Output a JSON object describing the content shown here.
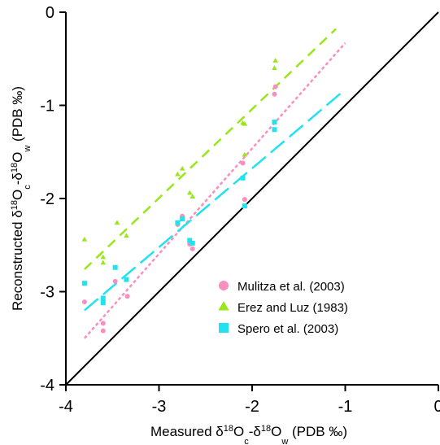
{
  "chart_data": {
    "type": "scatter",
    "xlabel_parts": [
      "Measured δ",
      "18",
      "O",
      "c",
      "-δ",
      "18",
      "O",
      "w",
      " (PDB ‰)"
    ],
    "ylabel_parts": [
      "Reconstructed δ",
      "18",
      "O",
      "c",
      "-δ",
      "18",
      "O",
      "w",
      " (PDB ‰)"
    ],
    "xlim": [
      -4,
      0
    ],
    "ylim": [
      -4,
      0
    ],
    "xticks": [
      -4,
      -3,
      -2,
      -1,
      0
    ],
    "yticks": [
      -4,
      -3,
      -2,
      -1,
      0
    ],
    "xtick_labels": [
      "-4",
      "-3",
      "-2",
      "-1",
      "0"
    ],
    "ytick_labels": [
      "-4",
      "-3",
      "-2",
      "-1",
      "0"
    ],
    "grid": false,
    "legend_position": "bottom-right",
    "reference_line": {
      "x": [
        -4,
        0
      ],
      "y": [
        -4,
        0
      ],
      "color": "#000000"
    },
    "series": [
      {
        "name": "Mulitza et al. (2003)",
        "marker": "circle",
        "color": "#f78fbf",
        "x": [
          -3.8,
          -3.6,
          -3.6,
          -3.47,
          -3.34,
          -2.8,
          -2.75,
          -2.67,
          -2.64,
          -2.1,
          -2.08,
          -1.76,
          -1.75
        ],
        "y": [
          -3.11,
          -3.34,
          -3.42,
          -2.89,
          -3.05,
          -2.28,
          -2.19,
          -2.49,
          -2.54,
          -1.62,
          -2.01,
          -0.88,
          -0.8
        ],
        "fit": {
          "x": [
            -3.8,
            -1.0
          ],
          "y": [
            -3.5,
            -0.33
          ],
          "dash": "4,3"
        }
      },
      {
        "name": "Erez and Luz (1983)",
        "marker": "triangle",
        "color": "#99e619",
        "x": [
          -3.8,
          -3.6,
          -3.6,
          -3.45,
          -3.35,
          -2.8,
          -2.75,
          -2.67,
          -2.64,
          -2.1,
          -2.08,
          -2.08,
          -1.76,
          -1.75
        ],
        "y": [
          -2.44,
          -2.63,
          -2.69,
          -2.26,
          -2.4,
          -1.74,
          -1.68,
          -1.94,
          -1.98,
          -1.19,
          -1.2,
          -1.53,
          -0.6,
          -0.52
        ],
        "fit": {
          "x": [
            -3.8,
            -1.1
          ],
          "y": [
            -2.76,
            -0.18
          ],
          "dash": "12,8"
        }
      },
      {
        "name": "Spero et al. (2003)",
        "marker": "square",
        "color": "#22e2f0",
        "x": [
          -3.8,
          -3.6,
          -3.6,
          -3.47,
          -3.35,
          -2.8,
          -2.75,
          -2.67,
          -2.64,
          -2.1,
          -2.08,
          -1.76,
          -1.76
        ],
        "y": [
          -2.91,
          -3.07,
          -3.12,
          -2.74,
          -2.87,
          -2.26,
          -2.22,
          -2.45,
          -2.48,
          -1.78,
          -2.08,
          -1.26,
          -1.18
        ],
        "fit": {
          "x": [
            -3.8,
            -1.0
          ],
          "y": [
            -3.2,
            -0.83
          ],
          "dash": "22,8"
        }
      }
    ]
  }
}
